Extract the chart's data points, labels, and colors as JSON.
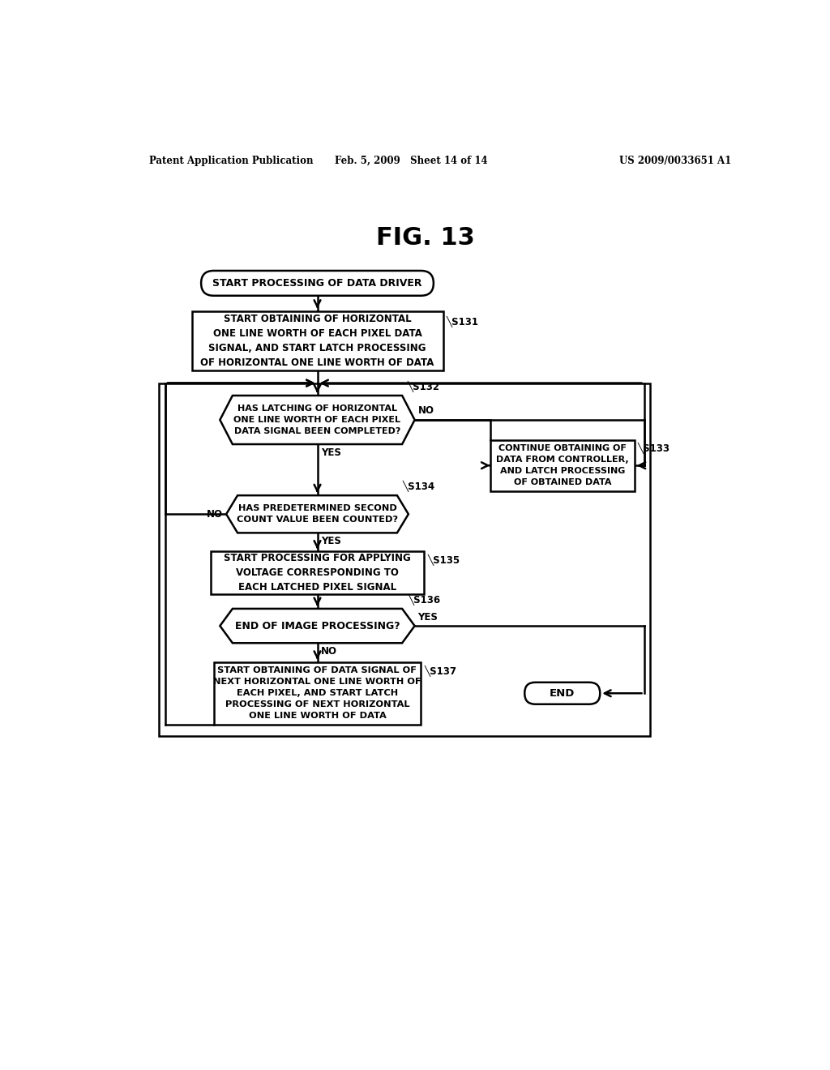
{
  "title": "FIG. 13",
  "header_left": "Patent Application Publication",
  "header_mid": "Feb. 5, 2009   Sheet 14 of 14",
  "header_right": "US 2009/0033651 A1",
  "background": "#ffffff",
  "fig_width": 10.24,
  "fig_height": 13.2,
  "dpi": 100
}
